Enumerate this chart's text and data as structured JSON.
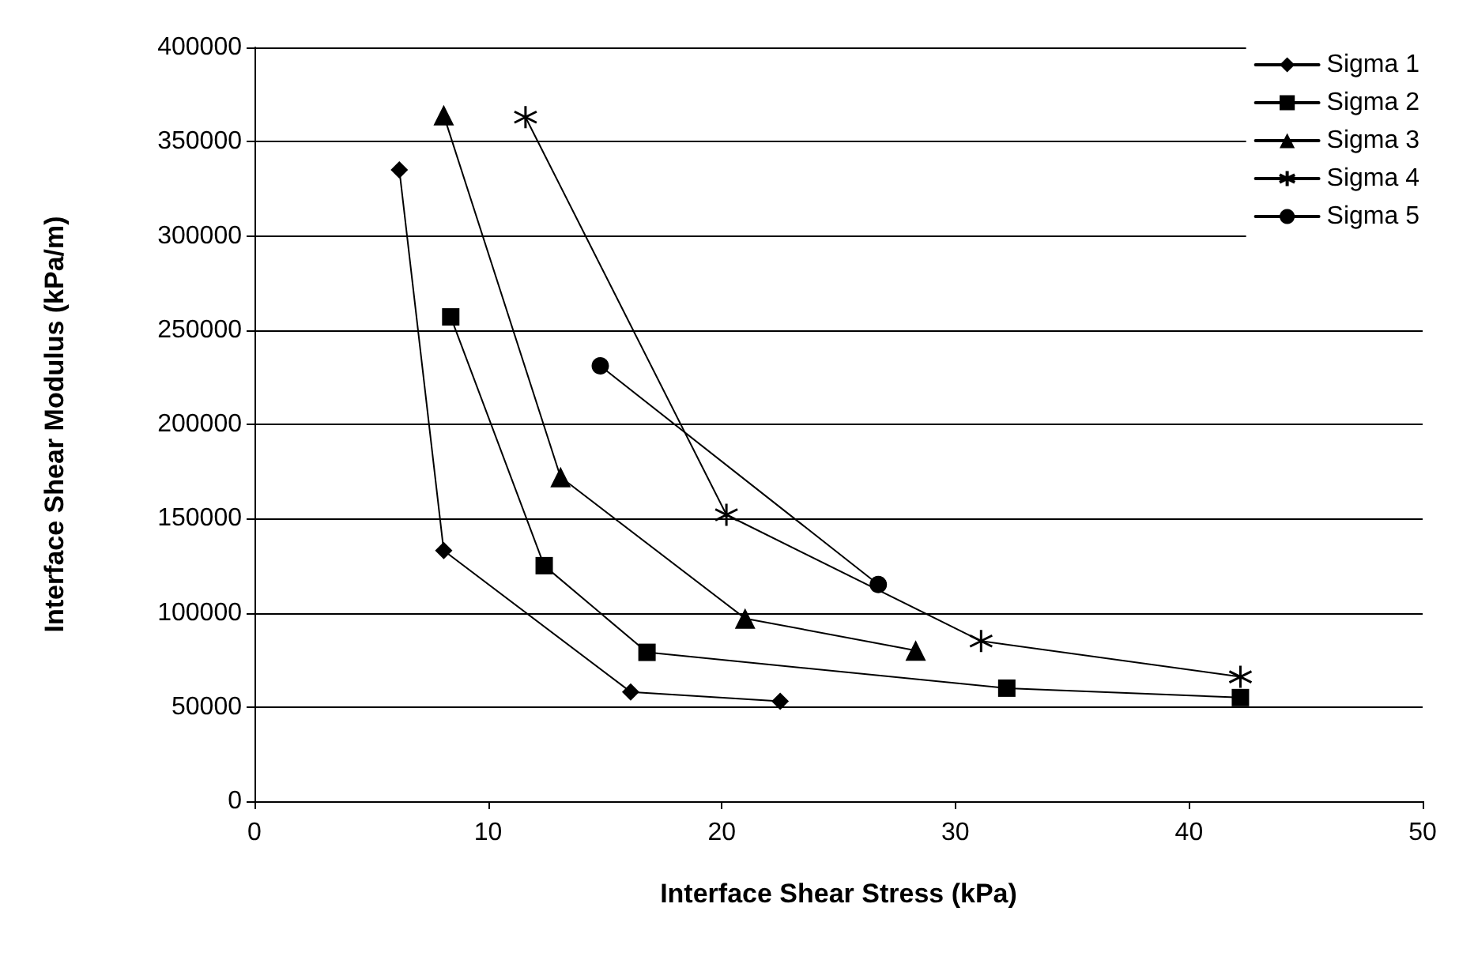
{
  "chart_data": {
    "type": "line",
    "xlabel": "Interface Shear Stress (kPa)",
    "ylabel": "Interface Shear Modulus (kPa/m)",
    "xlim": [
      0,
      50
    ],
    "xticks": [
      0,
      10,
      20,
      30,
      40,
      50
    ],
    "ylim": [
      0,
      400000
    ],
    "yticks": [
      0,
      50000,
      100000,
      150000,
      200000,
      250000,
      300000,
      350000,
      400000
    ],
    "grid": "y",
    "legend": "top right",
    "line_style": "solid",
    "series": [
      {
        "name": "Sigma 1",
        "color": "#000000",
        "marker": "diamond",
        "x": [
          6.2,
          8.1,
          16.1,
          22.5
        ],
        "values": [
          335000,
          133000,
          58000,
          53000
        ]
      },
      {
        "name": "Sigma 2",
        "color": "#000000",
        "marker": "square",
        "x": [
          8.4,
          12.4,
          16.8,
          32.2,
          42.2
        ],
        "values": [
          257000,
          125000,
          79000,
          60000,
          55000
        ]
      },
      {
        "name": "Sigma 3",
        "color": "#000000",
        "marker": "triangle",
        "x": [
          8.1,
          13.1,
          21.0,
          28.3
        ],
        "values": [
          364000,
          172000,
          97000,
          80000
        ]
      },
      {
        "name": "Sigma 4",
        "color": "#000000",
        "marker": "cross",
        "x": [
          11.6,
          20.2,
          31.1,
          42.2
        ],
        "values": [
          363000,
          152000,
          85000,
          66000
        ]
      },
      {
        "name": "Sigma 5",
        "color": "#000000",
        "marker": "circle",
        "x": [
          14.8,
          26.7
        ],
        "values": [
          231000,
          115000
        ]
      }
    ]
  }
}
